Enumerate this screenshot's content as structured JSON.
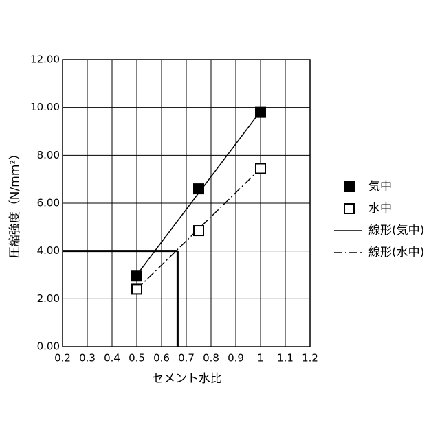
{
  "chart_data": {
    "type": "line",
    "x_label": "セメント水比",
    "y_label": "圧縮強度（N/mm²）",
    "xlim": [
      0.2,
      1.2
    ],
    "ylim": [
      0,
      12
    ],
    "xticks": [
      0.2,
      0.3,
      0.4,
      0.5,
      0.6,
      0.7,
      0.8,
      0.9,
      1,
      1.1,
      1.2
    ],
    "yticks": [
      {
        "value": 0,
        "label": "0.00"
      },
      {
        "value": 2,
        "label": "2.00"
      },
      {
        "value": 4,
        "label": "4.00"
      },
      {
        "value": 6,
        "label": "6.00"
      },
      {
        "value": 8,
        "label": "8.00"
      },
      {
        "value": 10,
        "label": "10.00"
      },
      {
        "value": 12,
        "label": "12.00"
      }
    ],
    "grid": true,
    "legend": "right",
    "series": [
      {
        "name": "気中",
        "color": "#000000",
        "style": "filled-square",
        "x": [
          0.5,
          0.75,
          1
        ],
        "values": [
          2.95,
          6.6,
          9.8
        ]
      },
      {
        "name": "水中",
        "color": "#000000",
        "style": "open-square",
        "x": [
          0.5,
          0.75,
          1
        ],
        "values": [
          2.4,
          4.85,
          7.45
        ]
      },
      {
        "name": "線形(気中)",
        "color": "#000000",
        "style": "solid",
        "x": [
          0.5,
          1
        ],
        "values": [
          3.0,
          9.85
        ]
      },
      {
        "name": "線形(水中)",
        "color": "#000000",
        "style": "dashdot",
        "x": [
          0.5,
          1
        ],
        "values": [
          2.4,
          7.45
        ]
      }
    ],
    "reference": {
      "x": 0.665,
      "y": 4
    }
  }
}
